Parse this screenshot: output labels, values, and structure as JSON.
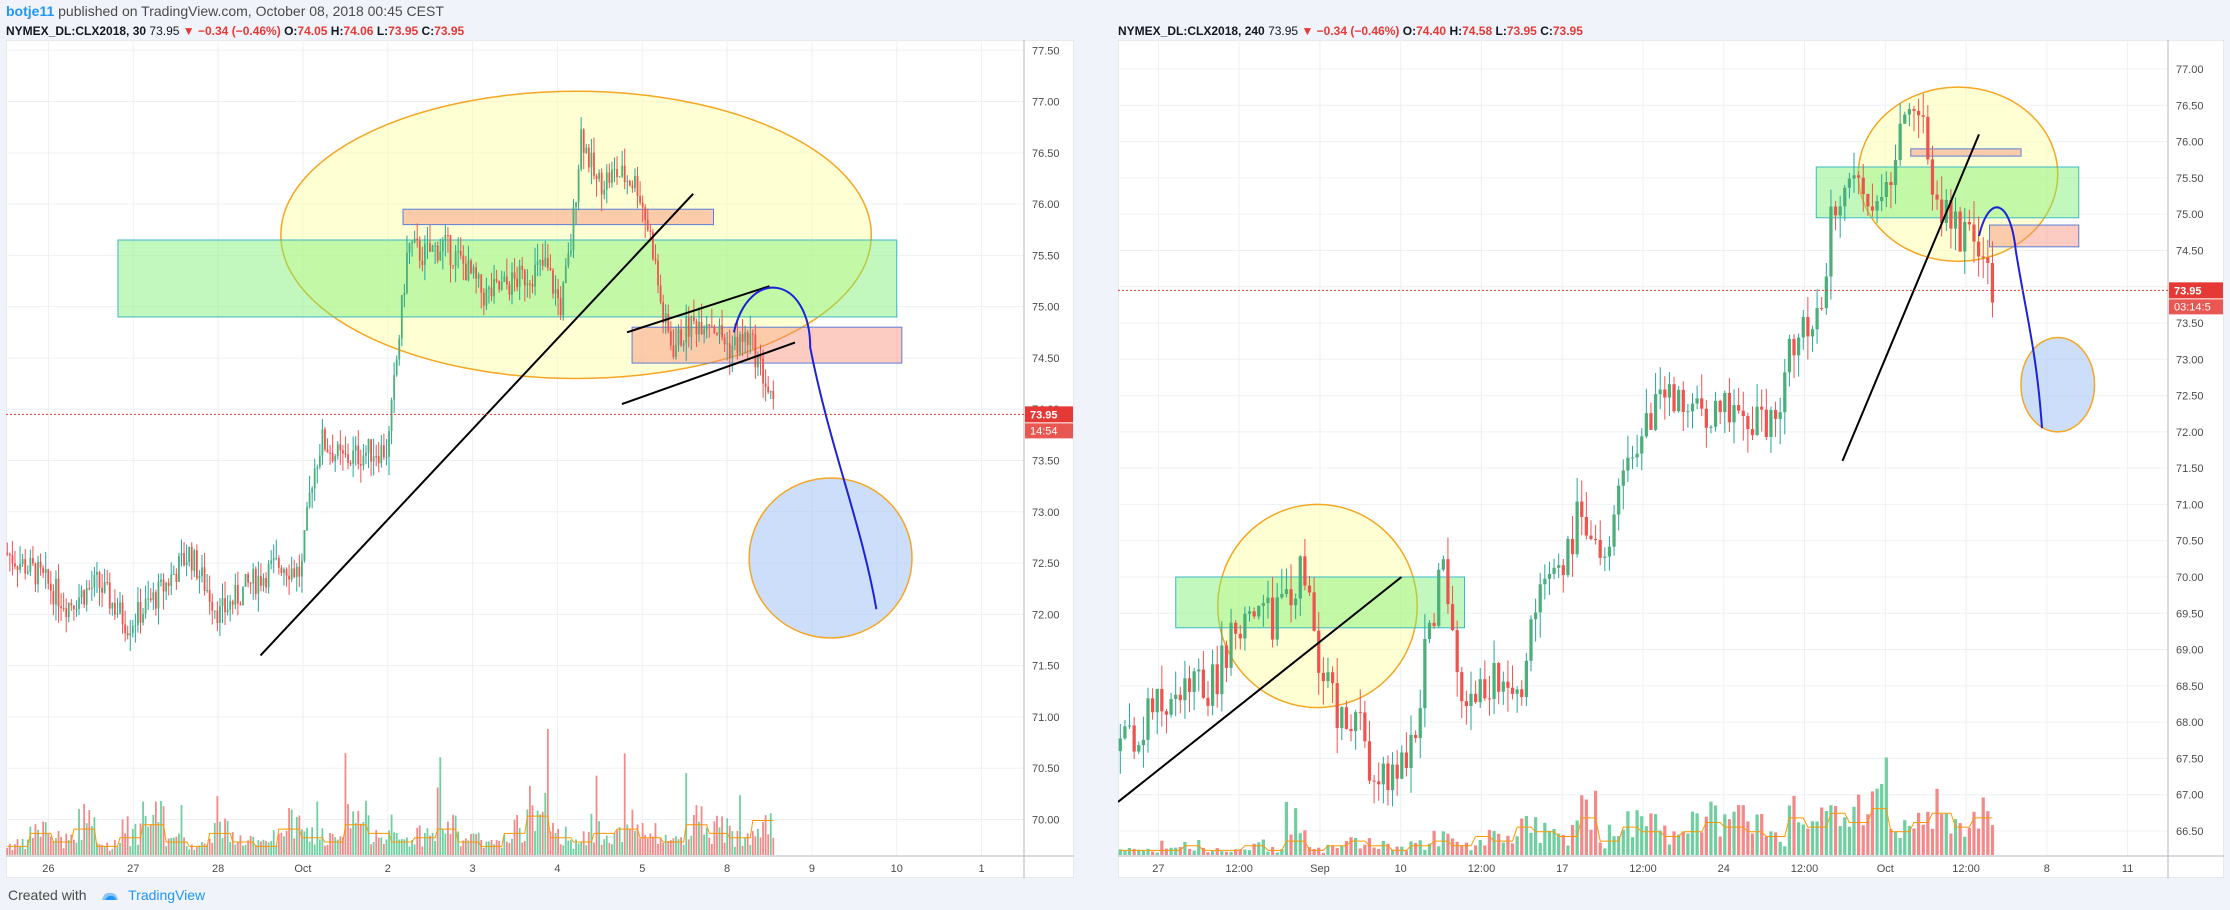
{
  "header": {
    "user": "botje11",
    "text": "published on TradingView.com, October 08, 2018 00:45 CEST"
  },
  "footer": {
    "created": "Created with",
    "brand": "TradingView"
  },
  "colors": {
    "up": "#26a69a",
    "upFill": "#4caf79",
    "down": "#ef5350",
    "vol_up": "#6fcfa0",
    "vol_down": "#f28a8a",
    "price_line": "#e53935",
    "ma": "#ff9800"
  },
  "panels": [
    {
      "symbol": "NYMEX_DL:CLX2018, 30",
      "last": "73.95",
      "change": "▼ −0.34 (−0.46%)",
      "o_label": "O:",
      "o": "74.05",
      "h_label": "H:",
      "h": "74.06",
      "l_label": "L:",
      "l": "73.95",
      "c_label": "C:",
      "c": "73.95",
      "price_tag": "73.95",
      "countdown": "14:54"
    },
    {
      "symbol": "NYMEX_DL:CLX2018, 240",
      "last": "73.95",
      "change": "▼ −0.34 (−0.46%)",
      "o_label": "O:",
      "o": "74.40",
      "h_label": "H:",
      "h": "74.58",
      "l_label": "L:",
      "l": "73.95",
      "c_label": "C:",
      "c": "73.95",
      "price_tag": "73.95",
      "countdown": "03:14:5"
    }
  ],
  "chart_data": [
    {
      "type": "candlestick",
      "timeframe": "30",
      "x_ticks": [
        "26",
        "27",
        "28",
        "Oct",
        "2",
        "3",
        "4",
        "5",
        "8",
        "9",
        "10",
        "1"
      ],
      "y_ticks": [
        "77.50",
        "77.00",
        "76.50",
        "76.00",
        "75.50",
        "75.00",
        "74.50",
        "74.00",
        "73.50",
        "73.00",
        "72.50",
        "72.00",
        "71.50",
        "71.00",
        "70.50",
        "70.00"
      ],
      "ylim": [
        69.8,
        77.6
      ],
      "last_price": 73.95,
      "trend": [
        [
          0.0,
          72.6
        ],
        [
          0.03,
          72.4
        ],
        [
          0.06,
          72.1
        ],
        [
          0.09,
          72.3
        ],
        [
          0.12,
          71.9
        ],
        [
          0.15,
          72.2
        ],
        [
          0.18,
          72.6
        ],
        [
          0.21,
          72.0
        ],
        [
          0.24,
          72.3
        ],
        [
          0.27,
          72.5
        ],
        [
          0.29,
          72.4
        ],
        [
          0.3,
          73.3
        ],
        [
          0.31,
          73.7
        ],
        [
          0.33,
          73.5
        ],
        [
          0.36,
          73.6
        ],
        [
          0.375,
          73.6
        ],
        [
          0.385,
          74.6
        ],
        [
          0.395,
          75.6
        ],
        [
          0.41,
          75.5
        ],
        [
          0.43,
          75.6
        ],
        [
          0.45,
          75.4
        ],
        [
          0.47,
          75.1
        ],
        [
          0.49,
          75.2
        ],
        [
          0.51,
          75.3
        ],
        [
          0.53,
          75.4
        ],
        [
          0.545,
          75.0
        ],
        [
          0.555,
          75.6
        ],
        [
          0.565,
          76.7
        ],
        [
          0.58,
          76.2
        ],
        [
          0.6,
          76.3
        ],
        [
          0.62,
          76.2
        ],
        [
          0.635,
          75.6
        ],
        [
          0.645,
          74.9
        ],
        [
          0.655,
          74.6
        ],
        [
          0.67,
          74.8
        ],
        [
          0.69,
          74.9
        ],
        [
          0.71,
          74.6
        ],
        [
          0.73,
          74.7
        ],
        [
          0.745,
          74.3
        ],
        [
          0.755,
          73.95
        ]
      ],
      "volume_trend": [
        0.2,
        0.5,
        0.3,
        0.6,
        0.2,
        0.4,
        0.7,
        0.3,
        0.2,
        0.5,
        0.3,
        0.2,
        0.6,
        0.4,
        0.3,
        0.7,
        0.5,
        0.3,
        0.4,
        0.6,
        0.3,
        0.2,
        0.5,
        0.9,
        0.4,
        0.3,
        0.5,
        0.6,
        0.4,
        0.3,
        0.7,
        0.5,
        0.4,
        0.8,
        0.6
      ],
      "annotations": {
        "ellipse_yellow": {
          "cx_frac": 0.56,
          "cy": 75.7,
          "rx_frac": 0.29,
          "ry_price": 1.4
        },
        "rect_green": {
          "x0_frac": 0.11,
          "x1_frac": 0.875,
          "y0": 75.65,
          "y1": 74.9
        },
        "rect_red_top": {
          "x0_frac": 0.39,
          "x1_frac": 0.695,
          "y0": 75.95,
          "y1": 75.8
        },
        "rect_red_mid": {
          "x0_frac": 0.615,
          "x1_frac": 0.88,
          "y0": 74.8,
          "y1": 74.45
        },
        "circle_blue": {
          "cx_frac": 0.81,
          "cy": 72.55,
          "rx_frac": 0.08,
          "ry_price": 0.78
        }
      }
    },
    {
      "type": "candlestick",
      "timeframe": "240",
      "x_ticks": [
        "27",
        "12:00",
        "Sep",
        "10",
        "12:00",
        "17",
        "12:00",
        "24",
        "12:00",
        "Oct",
        "12:00",
        "8",
        "11"
      ],
      "y_ticks": [
        "77.00",
        "76.50",
        "76.00",
        "75.50",
        "75.00",
        "74.50",
        "74.00",
        "73.50",
        "73.00",
        "72.50",
        "72.00",
        "71.50",
        "71.00",
        "70.50",
        "70.00",
        "69.50",
        "69.00",
        "68.50",
        "68.00",
        "67.50",
        "67.00",
        "66.50"
      ],
      "ylim": [
        66.1,
        77.4
      ],
      "last_price": 73.95,
      "trend": [
        [
          0.0,
          67.6
        ],
        [
          0.03,
          68.1
        ],
        [
          0.06,
          68.4
        ],
        [
          0.09,
          68.5
        ],
        [
          0.11,
          69.3
        ],
        [
          0.13,
          69.5
        ],
        [
          0.15,
          69.4
        ],
        [
          0.175,
          70.1
        ],
        [
          0.19,
          69.0
        ],
        [
          0.21,
          68.0
        ],
        [
          0.225,
          68.2
        ],
        [
          0.24,
          67.4
        ],
        [
          0.26,
          67.3
        ],
        [
          0.28,
          67.6
        ],
        [
          0.295,
          69.3
        ],
        [
          0.31,
          70.1
        ],
        [
          0.33,
          68.3
        ],
        [
          0.345,
          68.4
        ],
        [
          0.36,
          68.6
        ],
        [
          0.38,
          68.2
        ],
        [
          0.4,
          69.6
        ],
        [
          0.42,
          69.9
        ],
        [
          0.44,
          71.0
        ],
        [
          0.46,
          70.1
        ],
        [
          0.48,
          71.3
        ],
        [
          0.5,
          72.0
        ],
        [
          0.52,
          72.6
        ],
        [
          0.545,
          72.2
        ],
        [
          0.565,
          72.1
        ],
        [
          0.585,
          72.4
        ],
        [
          0.61,
          72.1
        ],
        [
          0.63,
          72.3
        ],
        [
          0.645,
          73.4
        ],
        [
          0.665,
          73.5
        ],
        [
          0.68,
          74.9
        ],
        [
          0.7,
          75.5
        ],
        [
          0.715,
          75.0
        ],
        [
          0.735,
          75.3
        ],
        [
          0.75,
          76.4
        ],
        [
          0.765,
          76.2
        ],
        [
          0.78,
          75.2
        ],
        [
          0.795,
          74.8
        ],
        [
          0.81,
          74.7
        ],
        [
          0.825,
          74.1
        ],
        [
          0.835,
          73.95
        ]
      ],
      "volume_trend": [
        0.1,
        0.1,
        0.1,
        0.2,
        0.1,
        0.1,
        0.2,
        0.1,
        0.3,
        0.1,
        0.2,
        0.3,
        0.2,
        0.1,
        0.2,
        0.3,
        0.2,
        0.4,
        0.3,
        0.6,
        0.5,
        0.4,
        0.8,
        0.3,
        0.6,
        0.5,
        0.4,
        0.5,
        0.7,
        0.6,
        0.5,
        0.4,
        0.8,
        0.6,
        0.9,
        0.7,
        1.0,
        0.5,
        0.7,
        0.9,
        0.6,
        0.8,
        0.5
      ],
      "annotations": {
        "circle_yellow_left": {
          "cx_frac": 0.19,
          "cy": 69.6,
          "rx_frac": 0.095,
          "ry_price": 1.4
        },
        "rect_green_left": {
          "x0_frac": 0.055,
          "x1_frac": 0.33,
          "y0": 70.0,
          "y1": 69.3
        },
        "circle_yellow_right": {
          "cx_frac": 0.8,
          "cy": 75.55,
          "rx_frac": 0.095,
          "ry_price": 1.2
        },
        "rect_green_right": {
          "x0_frac": 0.665,
          "x1_frac": 0.915,
          "y0": 75.65,
          "y1": 74.95
        },
        "rect_red_top": {
          "x0_frac": 0.755,
          "x1_frac": 0.86,
          "y0": 75.9,
          "y1": 75.8
        },
        "rect_red_right": {
          "x0_frac": 0.83,
          "x1_frac": 0.915,
          "y0": 74.85,
          "y1": 74.55
        },
        "circle_blue": {
          "cx_frac": 0.895,
          "cy": 72.65,
          "rx_frac": 0.035,
          "ry_price": 0.65
        }
      }
    }
  ]
}
